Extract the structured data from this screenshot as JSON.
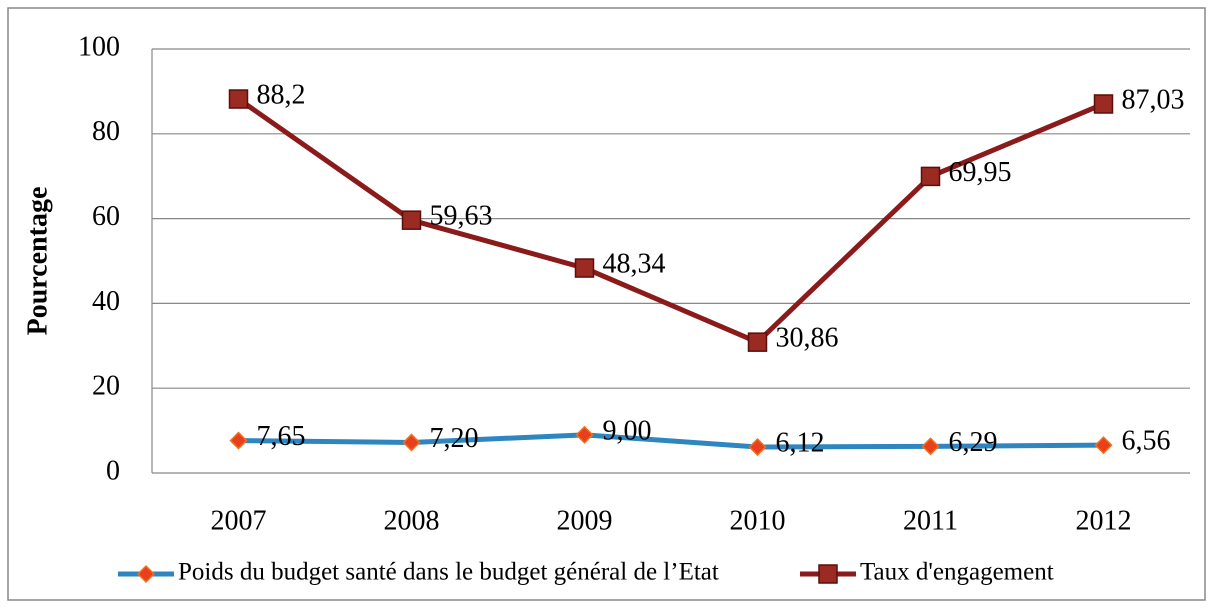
{
  "chart_data": {
    "type": "line",
    "y_label": "Pourcentage",
    "categories": [
      "2007",
      "2008",
      "2009",
      "2010",
      "2011",
      "2012"
    ],
    "series": [
      {
        "name": "Poids du budget santé dans le budget général de l’Etat",
        "color": "#2e86c1",
        "marker_color": "#e8401c",
        "marker": "diamond",
        "values": [
          7.65,
          7.2,
          9.0,
          6.12,
          6.29,
          6.56
        ],
        "value_labels": [
          "7,65",
          "7,20",
          "9,00",
          "6,12",
          "6,29",
          "6,56"
        ]
      },
      {
        "name": "Taux d'engagement",
        "color": "#8b1a1a",
        "marker_color": "#9b2a22",
        "marker": "square",
        "values": [
          88.2,
          59.63,
          48.34,
          30.86,
          69.95,
          87.03
        ],
        "value_labels": [
          "88,2",
          "59,63",
          "48,34",
          "30,86",
          "69,95",
          "87,03"
        ]
      }
    ],
    "ylim": [
      0,
      100
    ],
    "yticks": [
      0,
      20,
      40,
      60,
      80,
      100
    ],
    "grid": true,
    "legend": "bottom"
  }
}
